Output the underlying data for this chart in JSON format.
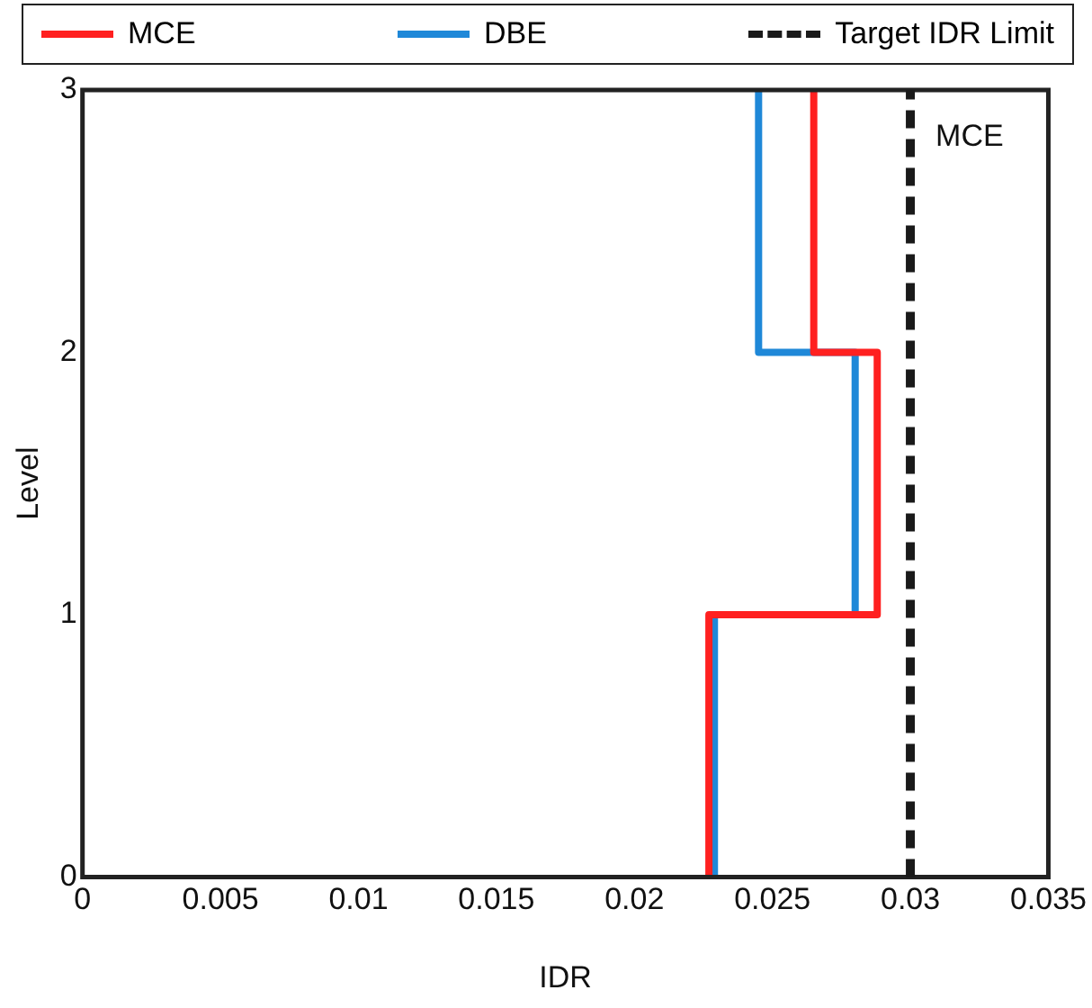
{
  "chart_data": {
    "type": "line",
    "xlabel": "IDR",
    "ylabel": "Level",
    "xlim": [
      0,
      0.035
    ],
    "xticks": [
      0,
      0.005,
      0.01,
      0.015,
      0.02,
      0.025,
      0.03,
      0.035
    ],
    "ylim": [
      0,
      3
    ],
    "yticks": [
      0,
      1,
      2,
      3
    ],
    "grid": false,
    "legend": "top",
    "marker": "none",
    "series": [
      {
        "name": "MCE",
        "color": "#ff2020",
        "line_style": "solid",
        "x": [
          0.0227,
          0.0227,
          0.0288,
          0.0288,
          0.0265,
          0.0265
        ],
        "values": [
          0,
          1,
          1,
          2,
          2,
          3
        ]
      },
      {
        "name": "DBE",
        "color": "#1f88d8",
        "line_style": "solid",
        "x": [
          0.0229,
          0.0229,
          0.028,
          0.028,
          0.0245,
          0.0245
        ],
        "values": [
          0,
          1,
          1,
          2,
          2,
          3
        ]
      }
    ],
    "ref_lines": [
      {
        "axis": "x",
        "value": 0.03,
        "label": "MCE",
        "color": "#1a1a1a",
        "line_style": "dashed"
      }
    ],
    "annotations": [
      "Target IDR Limit"
    ]
  }
}
